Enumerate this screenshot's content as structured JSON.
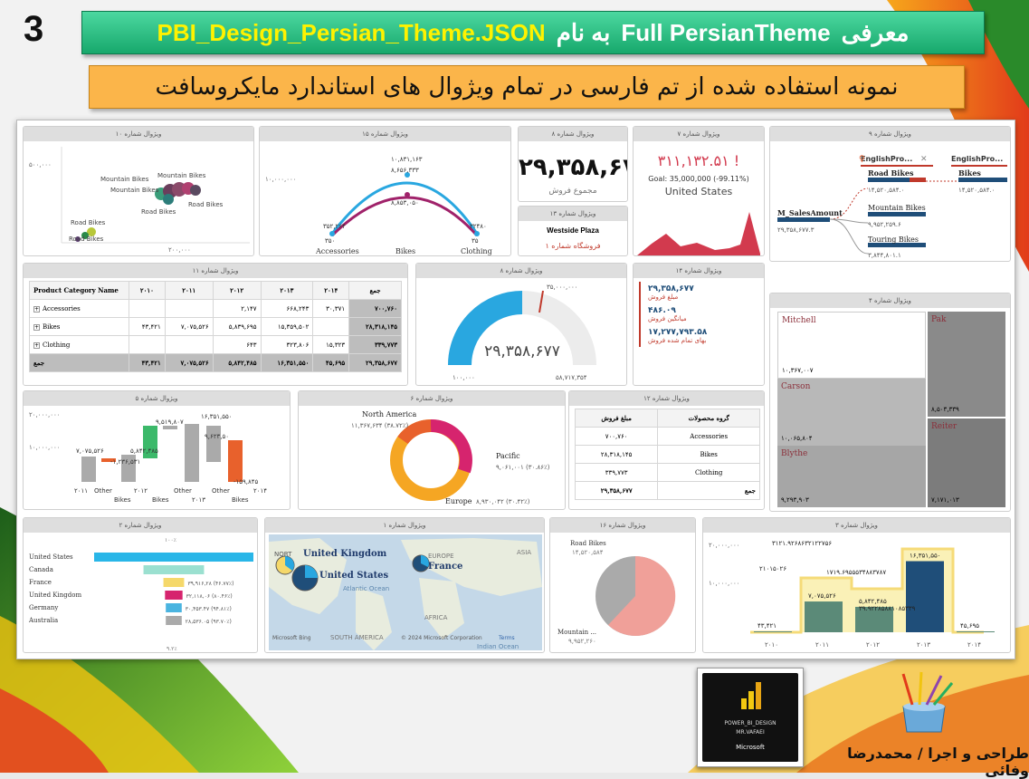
{
  "slide_no": "3",
  "title_parts": {
    "a": "معرفی",
    "b": "Full PersianTheme",
    "c": "به نام",
    "d": "PBI_Design_Persian_Theme.JSON"
  },
  "subtitle": "نمونه استفاده شده از تم  فارسی در تمام ویژوال های استاندارد مایکروسافت",
  "credit": "طراحی و اجرا / محمدرضا وفائی",
  "logo": {
    "line1": "POWER_BI_DESIGN",
    "line2": "MR.VAFAEI",
    "line3": "Microsoft"
  },
  "v10": {
    "title": "ویژوال شماره ۱۰",
    "y_tick": "۵۰۰,۰۰۰",
    "x_tick": "۲۰۰,۰۰۰",
    "labels": [
      "Mountain Bikes",
      "Mountain Bikes",
      "Mountain Bikes",
      "Road Bikes",
      "Road Bikes",
      "Road Bikes",
      "Road Bikes"
    ]
  },
  "v15": {
    "title": "ویژوال شماره ۱۵",
    "y_tick": "۱۰,۰۰۰,۰۰۰",
    "cats": [
      "Accessories",
      "Bikes",
      "Clothing"
    ],
    "top_labels": [
      "۱۰,۸۳۱,۱۶۳",
      "۸,۶۵۶,۳۳۳",
      "۸,۸۵۳,۰۵۰"
    ],
    "side_labels": [
      "۳۵۲,۲۶۴",
      "۳۵۰",
      "۳۲۴۸۰",
      "۳۵"
    ]
  },
  "v8a": {
    "title": "ویژوال شماره ۸",
    "value": "۲۹,۳۵۸,۶۷۷",
    "label": "مجموع فروش"
  },
  "v13": {
    "title": "ویژوال شماره ۱۳",
    "store": "Westside Plaza",
    "label": "فروشگاه شماره ۱"
  },
  "v7": {
    "title": "ویژوال شماره ۷",
    "value": "۳۱۱,۱۳۲.۵۱ !",
    "goal": "Goal: 35,000,000 (-99.11%)",
    "country": "United States"
  },
  "v9": {
    "title": "ویژوال شماره ۹",
    "root": "M_SalesAmount",
    "root_val": "۲۹,۳۵۸,۶۷۷.۳",
    "h1": "EnglishPro...",
    "h2": "EnglishPro...",
    "items": [
      {
        "n": "Road Bikes",
        "v": "۱۴,۵۲۰,۵۸۴.۰"
      },
      {
        "n": "Mountain Bikes",
        "v": "۹,۹۵۲,۲۵۹.۶"
      },
      {
        "n": "Touring Bikes",
        "v": "۳,۸۴۴,۸۰۱.۱"
      }
    ],
    "leaf": {
      "n": "Bikes",
      "v": "۱۴,۵۲۰,۵۸۴.۰"
    }
  },
  "v11": {
    "title": "ویژوال شماره ۱۱",
    "head": [
      "Product Category Name",
      "۲۰۱۰",
      "۲۰۱۱",
      "۲۰۱۲",
      "۲۰۱۳",
      "۲۰۱۴",
      "جمع"
    ],
    "rows": [
      [
        "Accessories",
        "",
        "",
        "۲,۱۴۷",
        "۶۶۸,۲۴۳",
        "۳۰,۳۷۱",
        "۷۰۰,۷۶۰"
      ],
      [
        "Bikes",
        "۴۳,۴۲۱",
        "۷,۰۷۵,۵۲۶",
        "۵,۸۳۹,۶۹۵",
        "۱۵,۳۵۹,۵۰۲",
        "",
        "۲۸,۳۱۸,۱۴۵"
      ],
      [
        "Clothing",
        "",
        "",
        "۶۴۳",
        "۳۲۳,۸۰۶",
        "۱۵,۳۲۳",
        "۳۳۹,۷۷۳"
      ],
      [
        "جمع",
        "۴۳,۴۲۱",
        "۷,۰۷۵,۵۲۶",
        "۵,۸۴۲,۴۸۵",
        "۱۶,۳۵۱,۵۵۰",
        "۴۵,۶۹۵",
        "۲۹,۳۵۸,۶۷۷"
      ]
    ]
  },
  "v8b": {
    "title": "ویژوال شماره ۸",
    "value": "۲۹,۳۵۸,۶۷۷",
    "target": "۳۵,۰۰۰,۰۰۰",
    "min": "۱۰۰,۰۰۰",
    "max": "۵۸,۷۱۷,۳۵۴",
    "fraction": 0.5
  },
  "v14": {
    "title": "ویژوال شماره ۱۴",
    "items": [
      {
        "v": "۲۹,۳۵۸,۶۷۷",
        "l": "مبلغ فروش"
      },
      {
        "v": "۴۸۶.۰۹",
        "l": "میانگین فروش"
      },
      {
        "v": "۱۷,۲۷۷,۷۹۳.۵۸",
        "l": "بهای تمام شده فروش"
      }
    ]
  },
  "v4": {
    "title": "ویژوال شماره ۴",
    "cells": [
      {
        "n": "Mitchell",
        "v": "۱۰,۳۶۷,۰۰۷"
      },
      {
        "n": "Pak",
        "v": "۸,۵۰۳,۳۳۹"
      },
      {
        "n": "Carson",
        "v": "۱۰,۰۶۵,۸۰۴"
      },
      {
        "n": "Reiter",
        "v": "۷,۱۷۱,۰۱۳"
      },
      {
        "n": "Blythe",
        "v": "۹,۲۹۳,۹۰۳"
      }
    ]
  },
  "v5": {
    "title": "ویژوال شماره ۵",
    "y_ticks": [
      "۲۰,۰۰۰,۰۰۰",
      "۱۰,۰۰۰,۰۰۰"
    ],
    "x_labels": [
      "۲۰۱۱",
      "Other",
      "Bikes",
      "۲۰۱۲",
      "Bikes",
      "Other",
      "۲۰۱۳",
      "Other",
      "Bikes",
      "۲۰۱۴"
    ],
    "labels": [
      "۷,۰۷۵,۵۲۶",
      "-۱,۲۳۶,۵۳۱",
      "۵,۸۴۲,۴۸۵",
      "۹,۵۱۹,۸۰۷",
      "۱۶,۳۵۱,۵۵۰",
      "۹,۶۲۳,۵۰",
      "-۱۵۹,۸۴۵"
    ]
  },
  "v6": {
    "title": "ویژوال شماره ۶",
    "segs": [
      {
        "n": "North America",
        "v": "۱۱,۳۶۷,۶۳۴ (۳۸.۷۲٪)"
      },
      {
        "n": "Pacific",
        "v": "۹,۰۶۱,۰۰۱ (۳۰.۸۶٪)"
      },
      {
        "n": "Europe",
        "v": "۸,۹۳۰,۰۴۲ (۳۰.۴۲٪)"
      }
    ]
  },
  "v12": {
    "title": "ویژوال شماره ۱۲",
    "head": [
      "گروه محصولات",
      "مبلغ فروش"
    ],
    "rows": [
      [
        "Accessories",
        "۷۰۰,۷۶۰"
      ],
      [
        "Bikes",
        "۲۸,۳۱۸,۱۴۵"
      ],
      [
        "Clothing",
        "۳۳۹,۷۷۳"
      ],
      [
        "جمع",
        "۲۹,۳۵۸,۶۷۷"
      ]
    ]
  },
  "v2": {
    "title": "ویژوال شماره ۲",
    "top": "۱۰۰٪",
    "bottom": "۹.۲٪",
    "rows": [
      {
        "n": "United States",
        "v": "",
        "p": 100,
        "c": "#29b6e8"
      },
      {
        "n": "Canada",
        "v": "",
        "p": 38,
        "c": "#9be0d0"
      },
      {
        "n": "France",
        "v": "۳۹,۹۱۶,۲۸ (۴۶.۷۷٪)",
        "p": 13,
        "c": "#f5d86a"
      },
      {
        "n": "United Kingdom",
        "v": "۳۲,۱۱۸,۰۶ (۸۰.۴۶٪)",
        "p": 11,
        "c": "#d6246e"
      },
      {
        "n": "Germany",
        "v": "۳۰,۴۵۳.۴۷ (۹۴.۸۱٪)",
        "p": 10,
        "c": "#4ab4e0"
      },
      {
        "n": "Australia",
        "v": "۲۸,۵۳۶.۰۵ (۹۳.۷۰٪)",
        "p": 10,
        "c": "#aaaaaa"
      }
    ]
  },
  "v1": {
    "title": "ویژوال شماره ۱",
    "labels": [
      "United Kingdom",
      "United States",
      "France"
    ],
    "geo": [
      "NORT",
      "EUROPE",
      "ASIA",
      "Atlantic Ocean",
      "AFRICA",
      "SOUTH AMERICA",
      "Indian Ocean"
    ],
    "footer": "© 2024 Microsoft Corporation",
    "terms": "Terms",
    "bing": "Microsoft Bing"
  },
  "v16": {
    "title": "ویژوال شماره ۱۶",
    "a": "Road Bikes",
    "av": "۱۴,۵۲۰,۵۸۴",
    "b": "Mountain ...",
    "bv": "۹,۹۵۲,۲۶۰",
    "frac": 0.59
  },
  "v3": {
    "title": "ویژوال شماره ۳",
    "y_ticks": [
      "۲۰,۰۰۰,۰۰۰",
      "۱۰,۰۰۰,۰۰۰"
    ],
    "years": [
      "۲۰۱۰",
      "۲۰۱۱",
      "۲۰۱۲",
      "۲۰۱۳",
      "۲۰۱۴"
    ],
    "bars": [
      43421,
      7075526,
      5842485,
      16351550,
      45695
    ],
    "bar_labels": [
      "۴۳,۴۲۱",
      "۷,۰۷۵,۵۲۶",
      "۵,۸۴۲,۴۸۵",
      "۱۶,۳۵۱,۵۵۰",
      "۴۵,۶۹۵"
    ],
    "line_labels": [
      "۲۱۰۱۵۰۲۶",
      "۳۱۲۱.۹۲۶۸۶۳۲۱۲۲۷۵۶",
      "۱۷۱۹.۶۹۵۵۵۳۴۸۸۳۷۸۷",
      "۳۹.۹۲۲۸۵۸۸۱۰۸۵۳۳۹"
    ]
  }
}
